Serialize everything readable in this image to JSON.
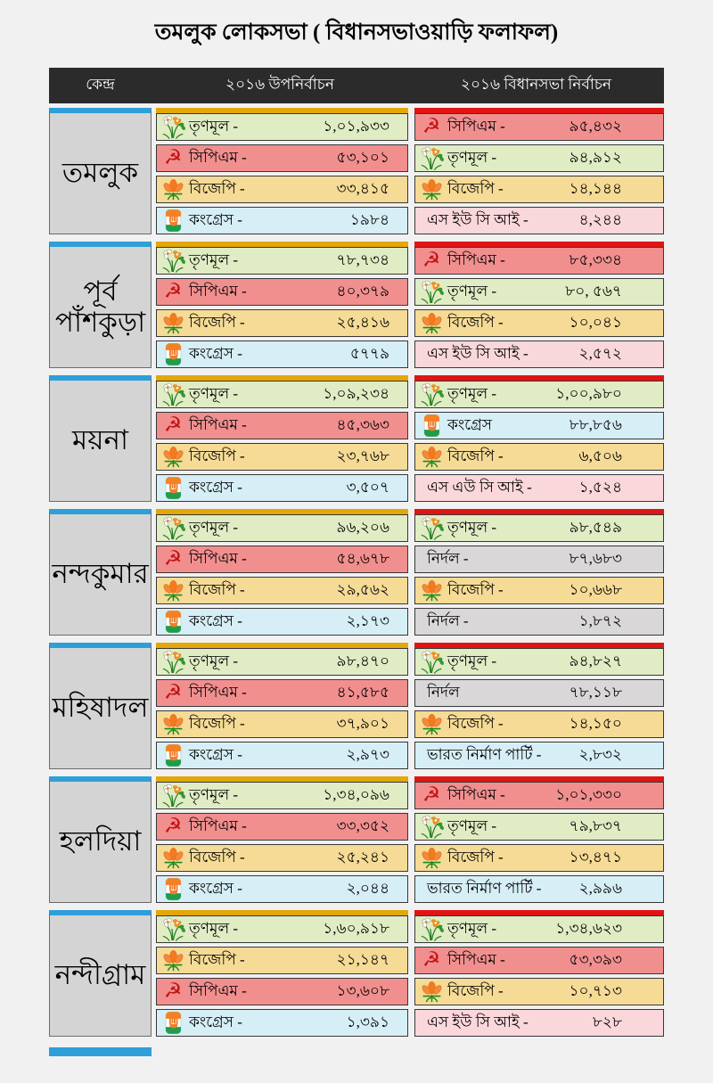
{
  "title": "তমলুক লোকসভা ( বিধানসভাওয়াড়ি ফলাফল)",
  "header": {
    "col_centre": "কেন্দ্র",
    "col_byelection": "২০১৬ উপনির্বাচন",
    "col_assembly": "২০১৬ বিধানসভা নির্বাচন"
  },
  "colors": {
    "page_bg": "#f1f1f1",
    "header_bg": "#2b2b2b",
    "name_bg": "#d4d4d4",
    "accent_blue": "#2e9fd9",
    "accent_gold": "#e3a70a",
    "accent_red": "#e11414",
    "row_tmc": "#e0ecc4",
    "row_cpm": "#f18f8f",
    "row_bjp": "#f5db96",
    "row_inc": "#d6eef5",
    "row_suci": "#fad7db",
    "row_ind": "#d9d7d7",
    "row_bnp": "#d6eef5"
  },
  "blocks": [
    {
      "name": "তমলুক",
      "byelection": {
        "rows": [
          {
            "party": "TMC",
            "icon": "tmc-flower-icon",
            "label": "তৃণমূল -",
            "value": "১,০১,৯৩৩"
          },
          {
            "party": "CPM",
            "icon": "cpm-hammer-sickle-icon",
            "label": "সিপিএম -",
            "value": "৫৩,১০১"
          },
          {
            "party": "BJP",
            "icon": "bjp-lotus-icon",
            "label": "বিজেপি -",
            "value": "৩৩,৪১৫"
          },
          {
            "party": "INC",
            "icon": "congress-hand-icon",
            "label": "কংগ্রেস -",
            "value": "১৯৮৪"
          }
        ]
      },
      "assembly": {
        "rows": [
          {
            "party": "CPM",
            "icon": "cpm-hammer-sickle-icon",
            "label": "সিপিএম -",
            "value": "৯৫,৪৩২"
          },
          {
            "party": "TMC",
            "icon": "tmc-flower-icon",
            "label": "তৃণমূল -",
            "value": "৯৪,৯১২"
          },
          {
            "party": "BJP",
            "icon": "bjp-lotus-icon",
            "label": "বিজেপি -",
            "value": "১৪,১৪৪"
          },
          {
            "party": "SUCI",
            "icon": "",
            "label": "এস ইউ সি আই -",
            "value": "৪,২৪৪"
          }
        ]
      }
    },
    {
      "name": "পূর্ব পাঁশকুড়া",
      "byelection": {
        "rows": [
          {
            "party": "TMC",
            "icon": "tmc-flower-icon",
            "label": "তৃণমূল -",
            "value": "৭৮,৭৩৪"
          },
          {
            "party": "CPM",
            "icon": "cpm-hammer-sickle-icon",
            "label": "সিপিএম -",
            "value": "৪০,৩৭৯"
          },
          {
            "party": "BJP",
            "icon": "bjp-lotus-icon",
            "label": "বিজেপি -",
            "value": "২৫,৪১৬"
          },
          {
            "party": "INC",
            "icon": "congress-hand-icon",
            "label": "কংগ্রেস -",
            "value": "৫৭৭৯"
          }
        ]
      },
      "assembly": {
        "rows": [
          {
            "party": "CPM",
            "icon": "cpm-hammer-sickle-icon",
            "label": "সিপিএম -",
            "value": "৮৫,৩৩৪"
          },
          {
            "party": "TMC",
            "icon": "tmc-flower-icon",
            "label": "তৃণমূল -",
            "value": "৮০, ৫৬৭"
          },
          {
            "party": "BJP",
            "icon": "bjp-lotus-icon",
            "label": "বিজেপি -",
            "value": "১০,০৪১"
          },
          {
            "party": "SUCI",
            "icon": "",
            "label": "এস ইউ সি আই -",
            "value": "২,৫৭২"
          }
        ]
      }
    },
    {
      "name": "ময়না",
      "byelection": {
        "rows": [
          {
            "party": "TMC",
            "icon": "tmc-flower-icon",
            "label": "তৃণমূল -",
            "value": "১,০৯,২৩৪"
          },
          {
            "party": "CPM",
            "icon": "cpm-hammer-sickle-icon",
            "label": "সিপিএম -",
            "value": "৪৫,৩৬৩"
          },
          {
            "party": "BJP",
            "icon": "bjp-lotus-icon",
            "label": "বিজেপি -",
            "value": "২৩,৭৬৮"
          },
          {
            "party": "INC",
            "icon": "congress-hand-icon",
            "label": "কংগ্রেস -",
            "value": "৩,৫০৭"
          }
        ]
      },
      "assembly": {
        "rows": [
          {
            "party": "TMC",
            "icon": "tmc-flower-icon",
            "label": "তৃণমূল -",
            "value": "১,০০,৯৮০"
          },
          {
            "party": "INC",
            "icon": "congress-hand-icon",
            "label": "কংগ্রেস",
            "value": "৮৮,৮৫৬"
          },
          {
            "party": "BJP",
            "icon": "bjp-lotus-icon",
            "label": "বিজেপি -",
            "value": "৬,৫০৬"
          },
          {
            "party": "SUCI",
            "icon": "",
            "label": "এস এউ সি আই -",
            "value": "১,৫২৪"
          }
        ]
      }
    },
    {
      "name": "নন্দকুমার",
      "byelection": {
        "rows": [
          {
            "party": "TMC",
            "icon": "tmc-flower-icon",
            "label": "তৃণমূল -",
            "value": "৯৬,২০৬"
          },
          {
            "party": "CPM",
            "icon": "cpm-hammer-sickle-icon",
            "label": "সিপিএম -",
            "value": "৫৪,৬৭৮"
          },
          {
            "party": "BJP",
            "icon": "bjp-lotus-icon",
            "label": "বিজেপি -",
            "value": "২৯,৫৬২"
          },
          {
            "party": "INC",
            "icon": "congress-hand-icon",
            "label": "কংগ্রেস -",
            "value": "২,১৭৩"
          }
        ]
      },
      "assembly": {
        "rows": [
          {
            "party": "TMC",
            "icon": "tmc-flower-icon",
            "label": "তৃণমূল -",
            "value": "৯৮,৫৪৯"
          },
          {
            "party": "IND",
            "icon": "",
            "label": "নির্দল -",
            "value": "৮৭,৬৮৩"
          },
          {
            "party": "BJP",
            "icon": "bjp-lotus-icon",
            "label": "বিজেপি -",
            "value": "১০,৬৬৮"
          },
          {
            "party": "IND",
            "icon": "",
            "label": "নির্দল -",
            "value": "১,৮৭২"
          }
        ]
      }
    },
    {
      "name": "মহিষাদল",
      "byelection": {
        "rows": [
          {
            "party": "TMC",
            "icon": "tmc-flower-icon",
            "label": "তৃণমূল -",
            "value": "৯৮,৪৭০"
          },
          {
            "party": "CPM",
            "icon": "cpm-hammer-sickle-icon",
            "label": "সিপিএম -",
            "value": "৪১,৫৮৫"
          },
          {
            "party": "BJP",
            "icon": "bjp-lotus-icon",
            "label": "বিজেপি -",
            "value": "৩৭,৯০১"
          },
          {
            "party": "INC",
            "icon": "congress-hand-icon",
            "label": "কংগ্রেস -",
            "value": "২,৯৭৩"
          }
        ]
      },
      "assembly": {
        "rows": [
          {
            "party": "TMC",
            "icon": "tmc-flower-icon",
            "label": "তৃণমূল -",
            "value": "৯৪,৮২৭"
          },
          {
            "party": "IND",
            "icon": "",
            "label": "নির্দল",
            "value": "৭৮,১১৮"
          },
          {
            "party": "BJP",
            "icon": "bjp-lotus-icon",
            "label": "বিজেপি -",
            "value": "১৪,১৫০"
          },
          {
            "party": "BNP",
            "icon": "",
            "label": "ভারত নির্মাণ পার্টি -",
            "value": "২,৮৩২"
          }
        ]
      }
    },
    {
      "name": "হলদিয়া",
      "byelection": {
        "rows": [
          {
            "party": "TMC",
            "icon": "tmc-flower-icon",
            "label": "তৃণমূল -",
            "value": "১,৩৪,০৯৬"
          },
          {
            "party": "CPM",
            "icon": "cpm-hammer-sickle-icon",
            "label": "সিপিএম -",
            "value": "৩৩,৩৫২"
          },
          {
            "party": "BJP",
            "icon": "bjp-lotus-icon",
            "label": "বিজেপি -",
            "value": "২৫,২৪১"
          },
          {
            "party": "INC",
            "icon": "congress-hand-icon",
            "label": "কংগ্রেস -",
            "value": "২,০৪৪"
          }
        ]
      },
      "assembly": {
        "rows": [
          {
            "party": "CPM",
            "icon": "cpm-hammer-sickle-icon",
            "label": "সিপিএম -",
            "value": "১,০১,৩৩০"
          },
          {
            "party": "TMC",
            "icon": "tmc-flower-icon",
            "label": "তৃণমূল -",
            "value": "৭৯,৮৩৭"
          },
          {
            "party": "BJP",
            "icon": "bjp-lotus-icon",
            "label": "বিজেপি -",
            "value": "১৩,৪৭১"
          },
          {
            "party": "BNP",
            "icon": "",
            "label": "ভারত নির্মাণ পার্টি -",
            "value": "২,৯৯৬"
          }
        ]
      }
    },
    {
      "name": "নন্দীগ্রাম",
      "byelection": {
        "rows": [
          {
            "party": "TMC",
            "icon": "tmc-flower-icon",
            "label": "তৃণমূল -",
            "value": "১,৬০,৯১৮"
          },
          {
            "party": "BJP",
            "icon": "bjp-lotus-icon",
            "label": "বিজেপি -",
            "value": "২১,১৪৭"
          },
          {
            "party": "CPM",
            "icon": "cpm-hammer-sickle-icon",
            "label": "সিপিএম -",
            "value": "১৩,৬০৮"
          },
          {
            "party": "INC",
            "icon": "congress-hand-icon",
            "label": "কংগ্রেস -",
            "value": "১,৩৯১"
          }
        ]
      },
      "assembly": {
        "rows": [
          {
            "party": "TMC",
            "icon": "tmc-flower-icon",
            "label": "তৃণমূল -",
            "value": "১,৩৪,৬২৩"
          },
          {
            "party": "CPM",
            "icon": "cpm-hammer-sickle-icon",
            "label": "সিপিএম -",
            "value": "৫৩,৩৯৩"
          },
          {
            "party": "BJP",
            "icon": "bjp-lotus-icon",
            "label": "বিজেপি -",
            "value": "১০,৭১৩"
          },
          {
            "party": "SUCI",
            "icon": "",
            "label": "এস ইউ সি আই -",
            "value": "৮২৮"
          }
        ]
      }
    }
  ]
}
